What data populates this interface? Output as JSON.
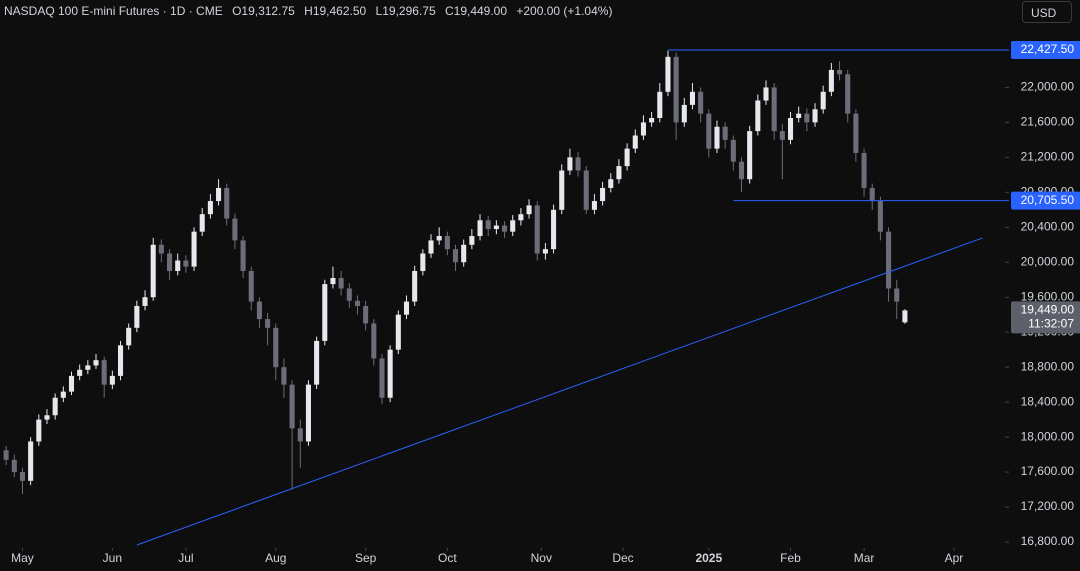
{
  "chart_data": {
    "type": "candlestick",
    "header": {
      "symbol": "NASDAQ 100 E-mini Futures · 1D · CME",
      "o_key": "O",
      "o": "19,312.75",
      "h_key": "H",
      "h": "19,462.50",
      "l_key": "L",
      "l": "19,296.75",
      "c_key": "C",
      "c": "19,449.00",
      "change": "+200.00 (+1.04%)"
    },
    "currency": "USD",
    "up_color": "#e6e8ee",
    "down_color": "#6b6e79",
    "line_color": "#2962ff",
    "xlim": [
      -1.5,
      244.5
    ],
    "xticks": [
      {
        "value": 4,
        "label": "May"
      },
      {
        "value": 26,
        "label": "Jun"
      },
      {
        "value": 44,
        "label": "Jul"
      },
      {
        "value": 66,
        "label": "Aug"
      },
      {
        "value": 88,
        "label": "Sep"
      },
      {
        "value": 108,
        "label": "Oct"
      },
      {
        "value": 131,
        "label": "Nov"
      },
      {
        "value": 151,
        "label": "Dec"
      },
      {
        "value": 172,
        "label": "2025"
      },
      {
        "value": 192,
        "label": "Feb"
      },
      {
        "value": 210,
        "label": "Mar"
      },
      {
        "value": 232,
        "label": "Apr"
      }
    ],
    "ylim": [
      16800,
      23000
    ],
    "yticks": [
      {
        "value": 16800,
        "label": "16,800.00"
      },
      {
        "value": 17200,
        "label": "17,200.00"
      },
      {
        "value": 17600,
        "label": "17,600.00"
      },
      {
        "value": 18000,
        "label": "18,000.00"
      },
      {
        "value": 18400,
        "label": "18,400.00"
      },
      {
        "value": 18800,
        "label": "18,800.00"
      },
      {
        "value": 19200,
        "label": "19,200.00"
      },
      {
        "value": 19600,
        "label": "19,600.00"
      },
      {
        "value": 20000,
        "label": "20,000.00"
      },
      {
        "value": 20400,
        "label": "20,400.00"
      },
      {
        "value": 20800,
        "label": "20,800.00"
      },
      {
        "value": 21200,
        "label": "21,200.00"
      },
      {
        "value": 21600,
        "label": "21,600.00"
      },
      {
        "value": 22000,
        "label": "22,000.00"
      }
    ],
    "x": [
      0,
      2,
      4,
      6,
      8,
      10,
      12,
      14,
      16,
      18,
      20,
      22,
      24,
      26,
      28,
      30,
      32,
      34,
      36,
      38,
      40,
      42,
      44,
      46,
      48,
      50,
      52,
      54,
      56,
      58,
      60,
      62,
      64,
      66,
      68,
      70,
      72,
      74,
      76,
      78,
      80,
      82,
      84,
      86,
      88,
      90,
      92,
      94,
      96,
      98,
      100,
      102,
      104,
      106,
      108,
      110,
      112,
      114,
      116,
      118,
      120,
      122,
      124,
      126,
      128,
      130,
      132,
      134,
      136,
      138,
      140,
      142,
      144,
      146,
      148,
      150,
      152,
      154,
      156,
      158,
      160,
      162,
      164,
      166,
      168,
      170,
      172,
      174,
      176,
      178,
      180,
      182,
      184,
      186,
      188,
      190,
      192,
      194,
      196,
      198,
      200,
      202,
      204,
      206,
      208,
      210,
      212,
      214,
      216,
      218,
      220
    ],
    "candles": [
      [
        17850,
        17900,
        17680,
        17740
      ],
      [
        17740,
        17800,
        17540,
        17600
      ],
      [
        17600,
        17650,
        17350,
        17500
      ],
      [
        17500,
        18000,
        17450,
        17950
      ],
      [
        17950,
        18260,
        17900,
        18200
      ],
      [
        18200,
        18320,
        18150,
        18250
      ],
      [
        18250,
        18500,
        18200,
        18450
      ],
      [
        18450,
        18580,
        18400,
        18520
      ],
      [
        18520,
        18750,
        18480,
        18700
      ],
      [
        18700,
        18830,
        18650,
        18770
      ],
      [
        18770,
        18880,
        18720,
        18820
      ],
      [
        18820,
        18950,
        18780,
        18880
      ],
      [
        18880,
        18920,
        18450,
        18600
      ],
      [
        18600,
        18760,
        18550,
        18700
      ],
      [
        18700,
        19100,
        18650,
        19050
      ],
      [
        19050,
        19300,
        19000,
        19250
      ],
      [
        19250,
        19560,
        19200,
        19500
      ],
      [
        19500,
        19680,
        19450,
        19600
      ],
      [
        19600,
        20280,
        19560,
        20200
      ],
      [
        20200,
        20260,
        20000,
        20100
      ],
      [
        20100,
        20150,
        19800,
        19900
      ],
      [
        19900,
        20100,
        19850,
        20020
      ],
      [
        20020,
        20080,
        19880,
        19950
      ],
      [
        19950,
        20400,
        19900,
        20350
      ],
      [
        20350,
        20620,
        20300,
        20550
      ],
      [
        20550,
        20780,
        20500,
        20700
      ],
      [
        20700,
        20950,
        20650,
        20850
      ],
      [
        20850,
        20900,
        20420,
        20500
      ],
      [
        20500,
        20560,
        20150,
        20250
      ],
      [
        20250,
        20300,
        19820,
        19900
      ],
      [
        19900,
        19950,
        19450,
        19550
      ],
      [
        19550,
        19600,
        19250,
        19350
      ],
      [
        19350,
        19420,
        19050,
        19250
      ],
      [
        19250,
        19300,
        18650,
        18800
      ],
      [
        18800,
        18900,
        18450,
        18600
      ],
      [
        18600,
        18650,
        17400,
        18100
      ],
      [
        18100,
        18200,
        17650,
        17950
      ],
      [
        17950,
        18650,
        17900,
        18600
      ],
      [
        18600,
        19150,
        18550,
        19100
      ],
      [
        19100,
        19800,
        19050,
        19750
      ],
      [
        19750,
        19950,
        19700,
        19820
      ],
      [
        19820,
        19900,
        19620,
        19700
      ],
      [
        19700,
        19760,
        19480,
        19560
      ],
      [
        19560,
        19620,
        19400,
        19500
      ],
      [
        19500,
        19560,
        19220,
        19300
      ],
      [
        19300,
        19350,
        18820,
        18900
      ],
      [
        18900,
        18950,
        18380,
        18450
      ],
      [
        18450,
        19050,
        18400,
        19000
      ],
      [
        19000,
        19450,
        18950,
        19400
      ],
      [
        19400,
        19620,
        19350,
        19550
      ],
      [
        19550,
        19960,
        19500,
        19900
      ],
      [
        19900,
        20150,
        19850,
        20100
      ],
      [
        20100,
        20320,
        20050,
        20250
      ],
      [
        20250,
        20400,
        20200,
        20300
      ],
      [
        20300,
        20350,
        20080,
        20150
      ],
      [
        20150,
        20200,
        19900,
        20000
      ],
      [
        20000,
        20260,
        19950,
        20200
      ],
      [
        20200,
        20380,
        20150,
        20300
      ],
      [
        20300,
        20550,
        20250,
        20480
      ],
      [
        20480,
        20530,
        20300,
        20380
      ],
      [
        20380,
        20480,
        20320,
        20420
      ],
      [
        20420,
        20470,
        20280,
        20350
      ],
      [
        20350,
        20540,
        20300,
        20480
      ],
      [
        20480,
        20620,
        20420,
        20550
      ],
      [
        20550,
        20720,
        20500,
        20650
      ],
      [
        20650,
        20700,
        20020,
        20100
      ],
      [
        20100,
        20220,
        20030,
        20150
      ],
      [
        20150,
        20660,
        20100,
        20600
      ],
      [
        20600,
        21120,
        20550,
        21050
      ],
      [
        21050,
        21300,
        21000,
        21200
      ],
      [
        21200,
        21260,
        20980,
        21050
      ],
      [
        21050,
        21100,
        20550,
        20600
      ],
      [
        20600,
        20780,
        20550,
        20700
      ],
      [
        20700,
        20920,
        20650,
        20850
      ],
      [
        20850,
        21020,
        20800,
        20950
      ],
      [
        20950,
        21180,
        20900,
        21100
      ],
      [
        21100,
        21360,
        21050,
        21300
      ],
      [
        21300,
        21520,
        21250,
        21450
      ],
      [
        21450,
        21680,
        21400,
        21600
      ],
      [
        21600,
        21720,
        21550,
        21650
      ],
      [
        21650,
        22050,
        21600,
        21950
      ],
      [
        21950,
        22420,
        21900,
        22350
      ],
      [
        22350,
        22400,
        21400,
        21600
      ],
      [
        21600,
        21880,
        21550,
        21800
      ],
      [
        21800,
        22050,
        21750,
        21950
      ],
      [
        21950,
        22000,
        21600,
        21700
      ],
      [
        21700,
        21750,
        21200,
        21300
      ],
      [
        21300,
        21620,
        21250,
        21550
      ],
      [
        21550,
        21600,
        21300,
        21400
      ],
      [
        21400,
        21450,
        21050,
        21150
      ],
      [
        21150,
        21200,
        20800,
        20950
      ],
      [
        20950,
        21560,
        20900,
        21500
      ],
      [
        21500,
        21920,
        21450,
        21850
      ],
      [
        21850,
        22080,
        21800,
        22000
      ],
      [
        22000,
        22050,
        21400,
        21500
      ],
      [
        21500,
        21580,
        20950,
        21400
      ],
      [
        21400,
        21720,
        21350,
        21650
      ],
      [
        21650,
        21780,
        21600,
        21700
      ],
      [
        21700,
        21760,
        21500,
        21600
      ],
      [
        21600,
        21820,
        21550,
        21750
      ],
      [
        21750,
        22020,
        21700,
        21950
      ],
      [
        21950,
        22280,
        21900,
        22200
      ],
      [
        22200,
        22300,
        22080,
        22150
      ],
      [
        22150,
        22200,
        21600,
        21700
      ],
      [
        21700,
        21750,
        21150,
        21250
      ],
      [
        21250,
        21300,
        20750,
        20850
      ],
      [
        20850,
        20900,
        20600,
        20700
      ],
      [
        20700,
        20750,
        20250,
        20350
      ],
      [
        20350,
        20400,
        19550,
        19700
      ],
      [
        19700,
        19800,
        19350,
        19550
      ],
      [
        19312.75,
        19462.5,
        19296.75,
        19449
      ]
    ],
    "levels": [
      {
        "value": 22427.5,
        "label": "22,427.50",
        "x_start": 162
      },
      {
        "value": 20705.5,
        "label": "20,705.50",
        "x_start": 178
      }
    ],
    "trendline": {
      "x": [
        32,
        239
      ],
      "y": [
        16766,
        20278
      ]
    },
    "last_price": {
      "value": 19449,
      "label": "19,449.00",
      "countdown": "11:32:07"
    }
  }
}
